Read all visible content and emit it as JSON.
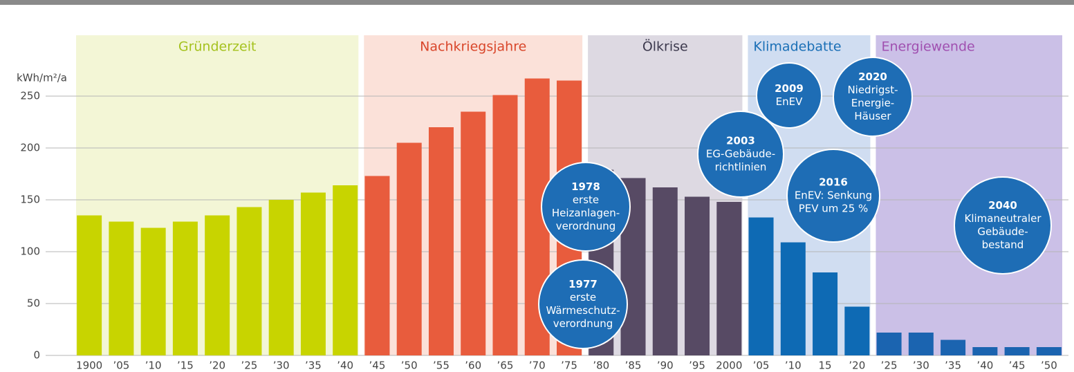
{
  "chart_data": {
    "type": "bar",
    "y_label": "kWh/m²/a",
    "categories": [
      "1900",
      "’05",
      "’10",
      "’15",
      "’20",
      "’25",
      "’30",
      "’35",
      "’40",
      "’45",
      "’50",
      "’55",
      "’60",
      "’65",
      "’70",
      "’75",
      "’80",
      "’85",
      "’90",
      "’95",
      "2000",
      "’05",
      "’10",
      "15",
      "’20",
      "’25",
      "’30",
      "’35",
      "’40",
      "’45",
      "’50"
    ],
    "series": [
      {
        "name": "Gründerzeit",
        "color": "#c8d400",
        "label_color": "#a5c21f",
        "band_color": "#f3f6d6",
        "values": [
          135,
          129,
          123,
          129,
          135,
          143,
          150,
          157,
          164,
          null,
          null,
          null,
          null,
          null,
          null,
          null,
          null,
          null,
          null,
          null,
          null,
          null,
          null,
          null,
          null,
          null,
          null,
          null,
          null,
          null,
          null
        ]
      },
      {
        "name": "Nachkriegsjahre",
        "color": "#e85c3d",
        "label_color": "#d9472b",
        "band_color": "#fbe1d9",
        "values": [
          null,
          null,
          null,
          null,
          null,
          null,
          null,
          null,
          null,
          173,
          205,
          220,
          235,
          251,
          267,
          265,
          null,
          null,
          null,
          null,
          null,
          null,
          null,
          null,
          null,
          null,
          null,
          null,
          null,
          null,
          null
        ]
      },
      {
        "name": "Ölkrise",
        "color": "#574a64",
        "label_color": "#3d3a4e",
        "band_color": "#ddd9e2",
        "values": [
          null,
          null,
          null,
          null,
          null,
          null,
          null,
          null,
          null,
          null,
          null,
          null,
          null,
          null,
          null,
          null,
          179,
          171,
          162,
          153,
          148,
          null,
          null,
          null,
          null,
          null,
          null,
          null,
          null,
          null,
          null
        ]
      },
      {
        "name": "Klimadebatte",
        "color": "#0e6ab4",
        "label_color": "#1a6fb6",
        "band_color": "#d0ddf1",
        "values": [
          null,
          null,
          null,
          null,
          null,
          null,
          null,
          null,
          null,
          null,
          null,
          null,
          null,
          null,
          null,
          null,
          null,
          null,
          null,
          null,
          null,
          133,
          109,
          80,
          47,
          null,
          null,
          null,
          null,
          null,
          null
        ]
      },
      {
        "name": "Energiewende",
        "color": "#1b64b0",
        "label_color": "#a050b0",
        "band_color": "#cbc0e7",
        "values": [
          null,
          null,
          null,
          null,
          null,
          null,
          null,
          null,
          null,
          null,
          null,
          null,
          null,
          null,
          null,
          null,
          null,
          null,
          null,
          null,
          null,
          null,
          null,
          null,
          null,
          22,
          22,
          15,
          8,
          8,
          8
        ]
      }
    ],
    "ylim": [
      0,
      300
    ],
    "yticks": [
      0,
      50,
      100,
      150,
      200,
      250
    ],
    "grid": true,
    "annotations": [
      {
        "lines": [
          "1978",
          "erste",
          "Heizanlagen-",
          "verordnung"
        ]
      },
      {
        "lines": [
          "1977",
          "erste",
          "Wärmeschutz-",
          "verordnung"
        ]
      },
      {
        "lines": [
          "2003",
          "EG-Gebäude-",
          "richtlinien"
        ]
      },
      {
        "lines": [
          "2009",
          "EnEV"
        ]
      },
      {
        "lines": [
          "2016",
          "EnEV: Senkung",
          "PEV um 25 %"
        ]
      },
      {
        "lines": [
          "2020",
          "Niedrigst-",
          "Energie-",
          "Häuser"
        ]
      },
      {
        "lines": [
          "2040",
          "Klimaneutraler",
          "Gebäude-",
          "bestand"
        ]
      }
    ],
    "annotation_color": "#1e6db5"
  }
}
